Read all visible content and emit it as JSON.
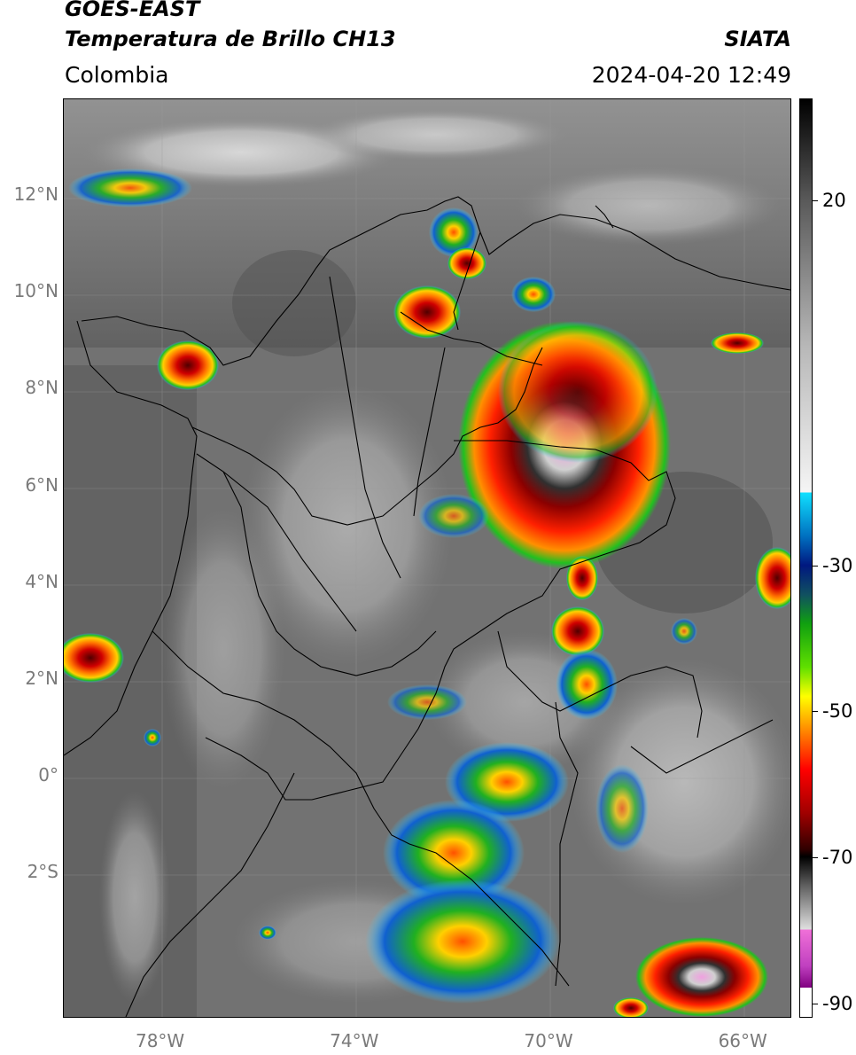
{
  "header": {
    "satellite": "GOES-EAST",
    "product": "Temperatura de Brillo CH13",
    "organization": "SIATA",
    "region": "Colombia",
    "datetime": "2024-04-20 12:49"
  },
  "map": {
    "lat_labels": [
      {
        "text": "12°N",
        "lat": 12
      },
      {
        "text": "10°N",
        "lat": 10
      },
      {
        "text": "8°N",
        "lat": 8
      },
      {
        "text": "6°N",
        "lat": 6
      },
      {
        "text": "4°N",
        "lat": 4
      },
      {
        "text": "2°N",
        "lat": 2
      },
      {
        "text": "0°",
        "lat": 0
      },
      {
        "text": "2°S",
        "lat": -2
      }
    ],
    "lon_labels": [
      {
        "text": "78°W",
        "lon": -78
      },
      {
        "text": "74°W",
        "lon": -74
      },
      {
        "text": "70°W",
        "lon": -70
      },
      {
        "text": "66°W",
        "lon": -66
      }
    ],
    "extent": {
      "lon_min": -80,
      "lon_max": -65,
      "lat_min": -5,
      "lat_max": 14
    }
  },
  "colorbar": {
    "unit_range": [
      -92,
      34
    ],
    "ticks": [
      {
        "text": "20",
        "value": 20
      },
      {
        "text": "-30",
        "value": -30
      },
      {
        "text": "-50",
        "value": -50
      },
      {
        "text": "-70",
        "value": -70
      },
      {
        "text": "-90",
        "value": -90
      }
    ]
  },
  "colors": {
    "background_cloudfree": "#6e6e6e",
    "borders": "#000000"
  }
}
